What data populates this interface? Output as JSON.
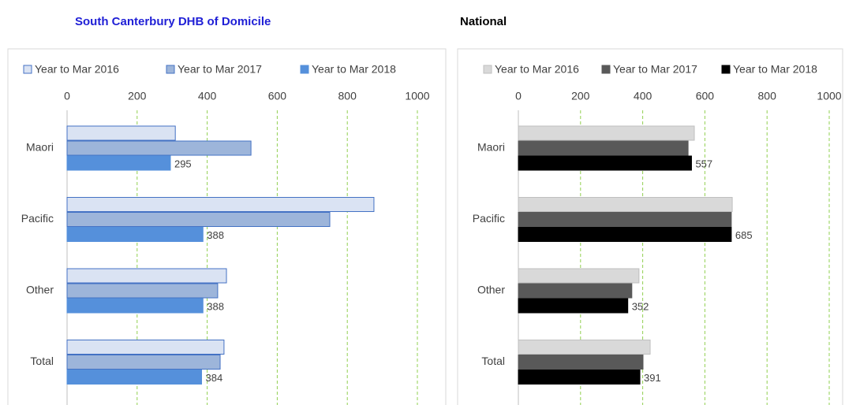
{
  "chart_data": [
    {
      "type": "bar",
      "orientation": "horizontal",
      "title": "South Canterbury DHB of Domicile",
      "title_color": "#1f1fd6",
      "categories": [
        "Maori",
        "Pacific",
        "Other",
        "Total"
      ],
      "series": [
        {
          "name": "Year to Mar 2016",
          "color": "#dae3f3",
          "stroke": "#4472c4",
          "values": [
            309,
            876,
            455,
            448
          ]
        },
        {
          "name": "Year to Mar 2017",
          "color": "#9db5da",
          "stroke": "#4472c4",
          "values": [
            525,
            750,
            430,
            437
          ]
        },
        {
          "name": "Year to Mar 2018",
          "color": "#5590db",
          "stroke": "#5590db",
          "values": [
            295,
            388,
            388,
            384
          ],
          "data_labels": true
        }
      ],
      "xlim": [
        0,
        1000
      ],
      "xticks": [
        0,
        200,
        400,
        600,
        800,
        1000
      ],
      "grid": true,
      "legend": "top"
    },
    {
      "type": "bar",
      "orientation": "horizontal",
      "title": "National",
      "title_color": "#000000",
      "categories": [
        "Maori",
        "Pacific",
        "Other",
        "Total"
      ],
      "series": [
        {
          "name": "Year to Mar 2016",
          "color": "#d9d9d9",
          "stroke": "#bfbfbf",
          "values": [
            566,
            688,
            388,
            424
          ]
        },
        {
          "name": "Year to Mar 2017",
          "color": "#595959",
          "stroke": "#595959",
          "values": [
            546,
            685,
            365,
            401
          ]
        },
        {
          "name": "Year to Mar 2018",
          "color": "#000000",
          "stroke": "#000000",
          "values": [
            557,
            685,
            352,
            391
          ],
          "data_labels": true
        }
      ],
      "xlim": [
        0,
        1000
      ],
      "xticks": [
        0,
        200,
        400,
        600,
        800,
        1000
      ],
      "grid": true,
      "legend": "top"
    }
  ]
}
